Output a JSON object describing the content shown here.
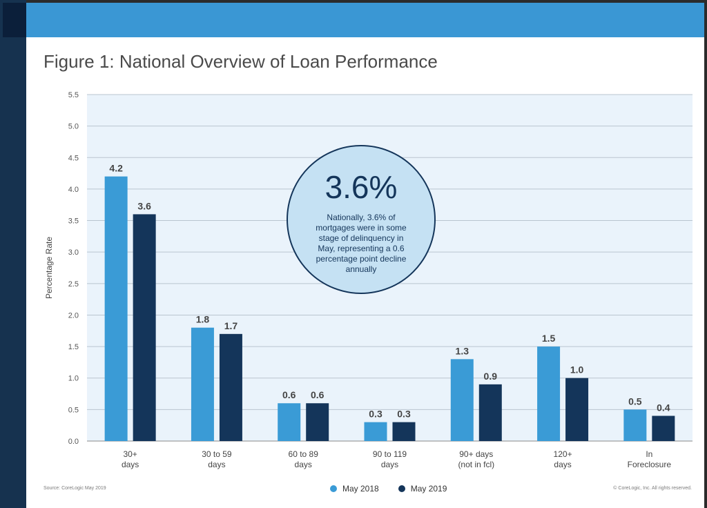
{
  "page": {
    "title": "Figure 1: National Overview of Loan Performance",
    "source": "Source: CoreLogic May 2019",
    "copyright": "© CoreLogic, Inc. All rights reserved.",
    "colors": {
      "top_bar": "#3a97d4",
      "left_strip": "#16324f",
      "plot_bg": "#eaf3fb"
    }
  },
  "callout": {
    "value": "3.6%",
    "text": "Nationally, 3.6% of mortgages were in some stage of delinquency in May, representing a 0.6 percentage point decline annually"
  },
  "chart_data": {
    "type": "bar",
    "title": "Figure 1: National Overview of Loan Performance",
    "ylabel": "Percentage Rate",
    "xlabel": "",
    "ylim": [
      0,
      5.5
    ],
    "yticks": [
      "0.0",
      "0.5",
      "1.0",
      "1.5",
      "2.0",
      "2.5",
      "3.0",
      "3.5",
      "4.0",
      "4.5",
      "5.0",
      "5.5"
    ],
    "grid": true,
    "legend_position": "bottom-center",
    "categories": [
      [
        "30+",
        "days"
      ],
      [
        "30 to 59",
        "days"
      ],
      [
        "60 to 89",
        "days"
      ],
      [
        "90 to 119",
        "days"
      ],
      [
        "90+ days",
        "(not in fcl)"
      ],
      [
        "120+",
        "days"
      ],
      [
        "In",
        "Foreclosure"
      ]
    ],
    "series": [
      {
        "name": "May 2018",
        "color": "#3a9bd6",
        "values": [
          4.2,
          1.8,
          0.6,
          0.3,
          1.3,
          1.5,
          0.5
        ],
        "labels": [
          "4.2",
          "1.8",
          "0.6",
          "0.3",
          "1.3",
          "1.5",
          "0.5"
        ]
      },
      {
        "name": "May 2019",
        "color": "#14355a",
        "values": [
          3.6,
          1.7,
          0.6,
          0.3,
          0.9,
          1.0,
          0.4
        ],
        "labels": [
          "3.6",
          "1.7",
          "0.6",
          "0.3",
          "0.9",
          "1.0",
          "0.4"
        ]
      }
    ]
  }
}
